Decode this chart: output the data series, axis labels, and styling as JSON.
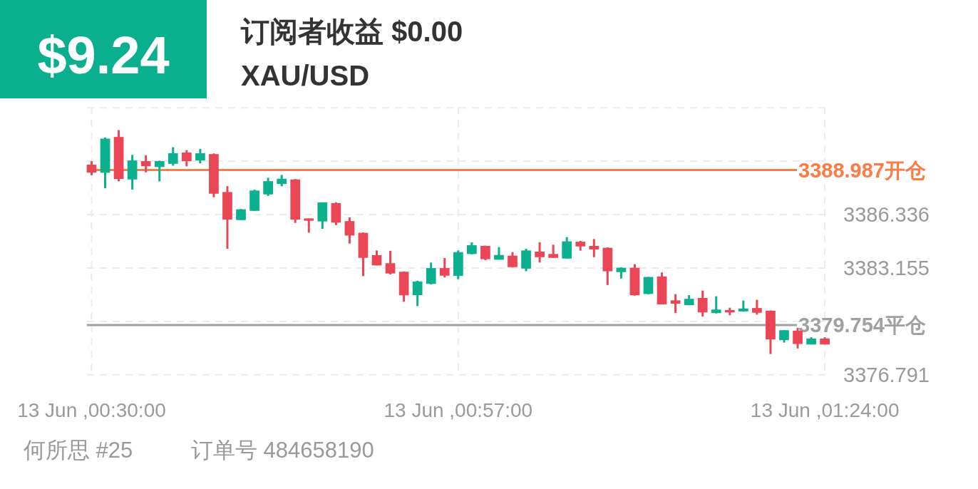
{
  "chart_data": {
    "type": "candlestick",
    "title": "订阅者收益 $0.00",
    "subtitle": "XAU/USD",
    "annotations": [
      "$9.24",
      "何所思 #25",
      "订单号 484658190"
    ],
    "categories": [
      "13 Jun ,00:30:00",
      null,
      null,
      null,
      null,
      null,
      null,
      null,
      null,
      null,
      null,
      null,
      null,
      null,
      null,
      null,
      null,
      null,
      null,
      null,
      null,
      null,
      null,
      null,
      null,
      null,
      null,
      "13 Jun ,00:57:00",
      null,
      null,
      null,
      null,
      null,
      null,
      null,
      null,
      null,
      null,
      null,
      null,
      null,
      null,
      null,
      null,
      null,
      null,
      null,
      null,
      null,
      null,
      null,
      null,
      null,
      null,
      "13 Jun ,01:24:00"
    ],
    "ohlc": [
      [
        3389.31,
        3389.52,
        3388.68,
        3388.84
      ],
      [
        3388.83,
        3390.93,
        3387.91,
        3390.86
      ],
      [
        3390.96,
        3391.37,
        3388.32,
        3388.46
      ],
      [
        3388.43,
        3389.89,
        3387.83,
        3389.56
      ],
      [
        3389.52,
        3389.87,
        3388.85,
        3389.22
      ],
      [
        3389.17,
        3389.55,
        3388.32,
        3389.52
      ],
      [
        3389.36,
        3390.35,
        3389.25,
        3389.99
      ],
      [
        3390.03,
        3390.17,
        3389.21,
        3389.52
      ],
      [
        3389.56,
        3390.25,
        3389.39,
        3389.99
      ],
      [
        3389.94,
        3389.98,
        3387.37,
        3387.58
      ],
      [
        3387.68,
        3388.03,
        3384.3,
        3386.04
      ],
      [
        3386.01,
        3386.67,
        3386.01,
        3386.65
      ],
      [
        3386.56,
        3387.82,
        3386.56,
        3387.77
      ],
      [
        3387.54,
        3388.53,
        3387.45,
        3388.33
      ],
      [
        3388.16,
        3388.7,
        3388.02,
        3388.47
      ],
      [
        3388.43,
        3388.45,
        3385.84,
        3386.04
      ],
      [
        3386.11,
        3386.11,
        3385.26,
        3385.97
      ],
      [
        3385.93,
        3387.06,
        3385.49,
        3387.06
      ],
      [
        3387.02,
        3387.06,
        3385.71,
        3385.86
      ],
      [
        3385.95,
        3386.17,
        3384.61,
        3385.09
      ],
      [
        3385.25,
        3385.27,
        3382.67,
        3383.76
      ],
      [
        3383.92,
        3384.2,
        3383.31,
        3383.31
      ],
      [
        3383.44,
        3384.18,
        3382.77,
        3382.83
      ],
      [
        3382.93,
        3382.95,
        3381.15,
        3381.53
      ],
      [
        3381.54,
        3382.4,
        3380.89,
        3382.35
      ],
      [
        3382.21,
        3383.48,
        3382.18,
        3383.15
      ],
      [
        3383.15,
        3383.75,
        3382.59,
        3382.7
      ],
      [
        3382.69,
        3384.2,
        3382.49,
        3384.1
      ],
      [
        3383.99,
        3384.68,
        3383.97,
        3384.51
      ],
      [
        3384.47,
        3384.49,
        3383.62,
        3383.68
      ],
      [
        3383.65,
        3384.4,
        3383.65,
        3383.93
      ],
      [
        3383.89,
        3384.1,
        3383.19,
        3383.21
      ],
      [
        3383.12,
        3384.3,
        3382.96,
        3384.2
      ],
      [
        3384.13,
        3384.69,
        3383.48,
        3383.8
      ],
      [
        3383.99,
        3384.54,
        3383.76,
        3383.76
      ],
      [
        3383.72,
        3384.99,
        3383.72,
        3384.74
      ],
      [
        3384.72,
        3384.77,
        3384.19,
        3384.44
      ],
      [
        3384.47,
        3384.88,
        3383.8,
        3384.26
      ],
      [
        3384.36,
        3384.38,
        3382.14,
        3382.96
      ],
      [
        3382.91,
        3383.19,
        3382.53,
        3383.17
      ],
      [
        3383.17,
        3383.38,
        3381.51,
        3381.53
      ],
      [
        3381.61,
        3382.62,
        3381.59,
        3382.62
      ],
      [
        3382.65,
        3382.89,
        3380.99,
        3380.99
      ],
      [
        3381.23,
        3381.6,
        3380.48,
        3381.03
      ],
      [
        3380.94,
        3381.54,
        3380.94,
        3381.32
      ],
      [
        3381.37,
        3381.81,
        3380.26,
        3380.51
      ],
      [
        3380.47,
        3381.47,
        3380.45,
        3380.68
      ],
      [
        3380.65,
        3380.79,
        3380.34,
        3380.51
      ],
      [
        3380.57,
        3381.22,
        3380.55,
        3380.74
      ],
      [
        3380.77,
        3381.26,
        3380.38,
        3380.49
      ],
      [
        3380.61,
        3380.63,
        3378.03,
        3378.9
      ],
      [
        3378.86,
        3379.45,
        3378.71,
        3379.45
      ],
      [
        3379.42,
        3379.59,
        3378.36,
        3378.63
      ],
      [
        3378.6,
        3379.03,
        3378.6,
        3378.95
      ],
      [
        3378.95,
        3379.03,
        3378.6,
        3378.6
      ]
    ],
    "colors": [
      "#ea4656",
      "#0bb08e",
      "#ea4656",
      "#0bb08e",
      "#ea4656",
      "#0bb08e",
      "#0bb08e",
      "#ea4656",
      "#0bb08e",
      "#ea4656",
      "#ea4656",
      "#0bb08e",
      "#0bb08e",
      "#0bb08e",
      "#0bb08e",
      "#ea4656",
      "#ea4656",
      "#0bb08e",
      "#ea4656",
      "#ea4656",
      "#ea4656",
      "#ea4656",
      "#ea4656",
      "#ea4656",
      "#0bb08e",
      "#0bb08e",
      "#ea4656",
      "#0bb08e",
      "#0bb08e",
      "#ea4656",
      "#0bb08e",
      "#ea4656",
      "#0bb08e",
      "#ea4656",
      "#ea4656",
      "#0bb08e",
      "#ea4656",
      "#ea4656",
      "#ea4656",
      "#0bb08e",
      "#ea4656",
      "#0bb08e",
      "#ea4656",
      "#ea4656",
      "#0bb08e",
      "#ea4656",
      "#0bb08e",
      "#ea4656",
      "#0bb08e",
      "#ea4656",
      "#ea4656",
      "#0bb08e",
      "#ea4656",
      "#0bb08e",
      "#ea4656"
    ],
    "ylim": [
      3376.7,
      3392.75
    ],
    "yticks": [
      3376.791,
      {
        "value": 3379.973,
        "label": null
      },
      3383.155,
      3386.336,
      {
        "value": 3389.518,
        "label": null
      },
      {
        "value": 3392.699,
        "label": null
      }
    ],
    "grid": true,
    "ref_lines": [
      {
        "axis": "y",
        "value": 3388.987,
        "label": "3388.987开仓",
        "color": "#ff7a45"
      },
      {
        "axis": "y",
        "value": 3379.754,
        "label": "3379.754平仓",
        "color": "#a0a0a0"
      }
    ]
  }
}
